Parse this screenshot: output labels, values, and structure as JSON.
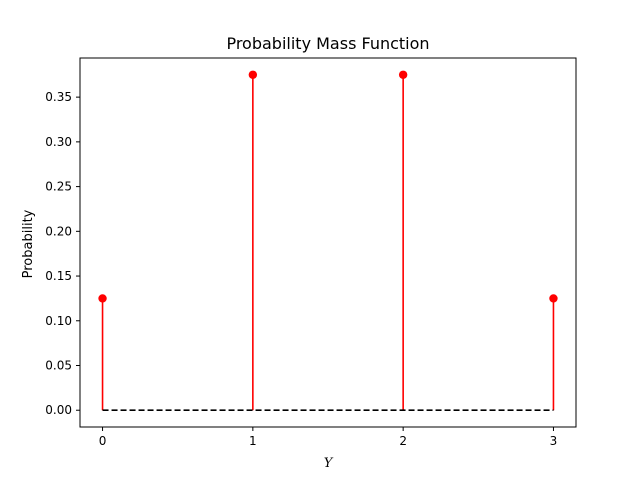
{
  "chart_data": {
    "type": "stem",
    "title": "Probability Mass Function",
    "xlabel": "Y",
    "ylabel": "Probability",
    "x": [
      0,
      1,
      2,
      3
    ],
    "values": [
      0.125,
      0.375,
      0.375,
      0.125
    ],
    "xticks": [
      "0",
      "1",
      "2",
      "3"
    ],
    "yticks": [
      "0.00",
      "0.05",
      "0.10",
      "0.15",
      "0.20",
      "0.25",
      "0.30",
      "0.35"
    ],
    "xlim": [
      -0.15,
      3.15
    ],
    "ylim": [
      -0.01875,
      0.39375
    ],
    "baseline": 0,
    "grid": false,
    "colors": {
      "stem": "#ff0000",
      "marker": "#ff0000",
      "baseline": "#000000"
    }
  }
}
